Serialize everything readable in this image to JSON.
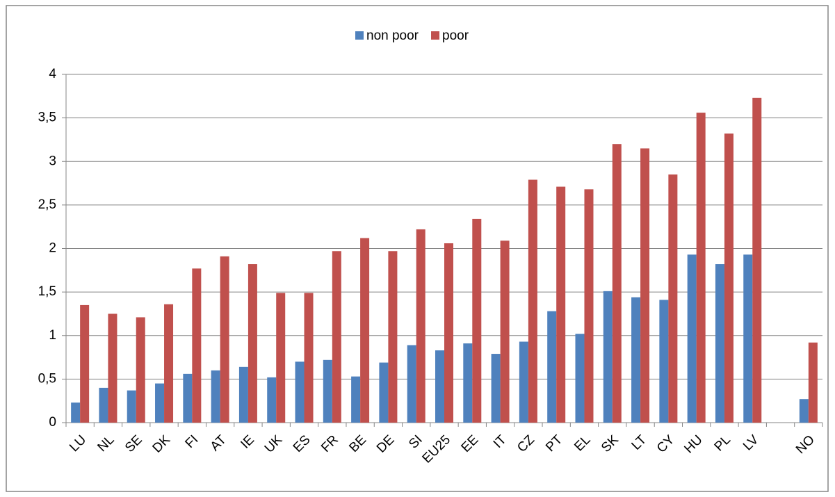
{
  "chart_data": {
    "type": "bar",
    "categories": [
      "LU",
      "NL",
      "SE",
      "DK",
      "FI",
      "AT",
      "IE",
      "UK",
      "ES",
      "FR",
      "BE",
      "DE",
      "SI",
      "EU25",
      "EE",
      "IT",
      "CZ",
      "PT",
      "EL",
      "SK",
      "LT",
      "CY",
      "HU",
      "PL",
      "LV",
      null,
      "NO"
    ],
    "series": [
      {
        "name": "non poor",
        "color": "#4f81bd",
        "values": [
          0.23,
          0.4,
          0.37,
          0.45,
          0.56,
          0.6,
          0.64,
          0.52,
          0.7,
          0.72,
          0.53,
          0.69,
          0.89,
          0.83,
          0.91,
          0.79,
          0.93,
          1.28,
          1.02,
          1.51,
          1.44,
          1.41,
          1.93,
          1.82,
          1.93,
          null,
          0.27
        ]
      },
      {
        "name": "poor",
        "color": "#c0504d",
        "values": [
          1.35,
          1.25,
          1.21,
          1.36,
          1.77,
          1.91,
          1.82,
          1.49,
          1.49,
          1.97,
          2.12,
          1.97,
          2.22,
          2.06,
          2.34,
          2.09,
          2.79,
          2.71,
          2.68,
          3.2,
          3.15,
          2.85,
          3.56,
          3.32,
          3.73,
          null,
          0.92
        ]
      }
    ],
    "ylim": [
      0,
      4
    ],
    "yticks": [
      0,
      {
        "value": 0.5,
        "label": "0,5"
      },
      1,
      {
        "value": 1.5,
        "label": "1,5"
      },
      2,
      {
        "value": 2.5,
        "label": "2,5"
      },
      3,
      {
        "value": 3.5,
        "label": "3,5"
      },
      4
    ],
    "grid": true,
    "legend": "top"
  }
}
